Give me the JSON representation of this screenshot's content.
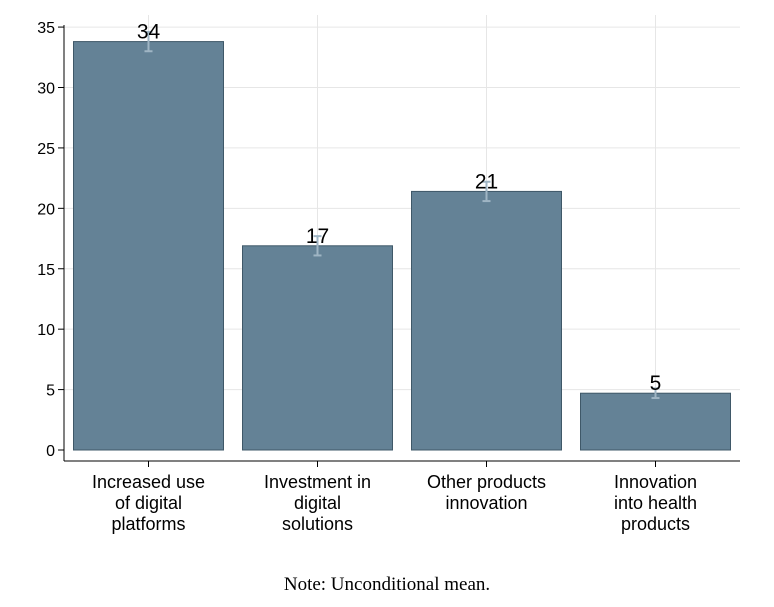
{
  "chart_data": {
    "type": "bar",
    "categories": [
      [
        "Increased use",
        "of digital",
        "platforms"
      ],
      [
        "Investment in",
        "digital",
        "solutions"
      ],
      [
        "Other products",
        "innovation"
      ],
      [
        "Innovation",
        "into health",
        "products"
      ]
    ],
    "values": [
      33.8,
      16.9,
      21.4,
      4.7
    ],
    "value_labels": [
      "34",
      "17",
      "21",
      "5"
    ],
    "error_low": [
      33.0,
      16.1,
      20.6,
      4.3
    ],
    "error_high": [
      34.6,
      17.7,
      22.2,
      5.1
    ],
    "ylim": [
      0,
      36
    ],
    "yticks": [
      0,
      5,
      10,
      15,
      20,
      25,
      30,
      35
    ],
    "xlabel": "",
    "ylabel": "",
    "grid": true,
    "colors": {
      "bar_fill": "#648296",
      "bar_stroke": "#3f5868",
      "error_bar": "#9fb5c4",
      "grid": "#e6e6e6",
      "axis": "#000000"
    }
  },
  "note": "Note: Unconditional mean."
}
